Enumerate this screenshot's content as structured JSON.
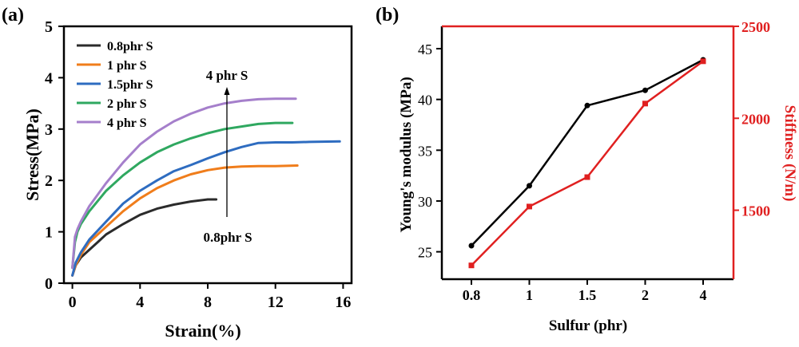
{
  "chart_data": [
    {
      "panel_label": "(a)",
      "type": "line",
      "xlabel": "Strain(%)",
      "ylabel": "Stress(MPa)",
      "xlim": [
        -0.5,
        16.5
      ],
      "ylim": [
        0,
        5
      ],
      "xticks": [
        0,
        4,
        8,
        12,
        16
      ],
      "yticks": [
        0,
        1,
        2,
        3,
        4,
        5
      ],
      "legend_position": "top-left",
      "annotation_top": "4 phr S",
      "annotation_bottom": "0.8phr S",
      "series": [
        {
          "name": "0.8phr S",
          "color": "#2b2b2b",
          "x": [
            0,
            0.2,
            0.5,
            1,
            1.5,
            2,
            3,
            4,
            5,
            6,
            7,
            8,
            8.5
          ],
          "y": [
            0.15,
            0.35,
            0.5,
            0.65,
            0.8,
            0.95,
            1.15,
            1.33,
            1.45,
            1.53,
            1.59,
            1.63,
            1.63
          ]
        },
        {
          "name": "1 phr S",
          "color": "#f07d1b",
          "x": [
            0,
            0.2,
            0.5,
            1,
            2,
            3,
            4,
            5,
            6,
            7,
            8,
            9,
            10,
            11,
            12,
            13.3
          ],
          "y": [
            0.15,
            0.35,
            0.55,
            0.8,
            1.1,
            1.4,
            1.65,
            1.85,
            2.0,
            2.12,
            2.2,
            2.25,
            2.27,
            2.28,
            2.28,
            2.29
          ]
        },
        {
          "name": "1.5phr S",
          "color": "#2e6cc0",
          "x": [
            0,
            0.2,
            0.5,
            1,
            2,
            3,
            4,
            5,
            6,
            7,
            8,
            9,
            10,
            11,
            12,
            13,
            14,
            15.8
          ],
          "y": [
            0.15,
            0.4,
            0.6,
            0.85,
            1.2,
            1.55,
            1.8,
            2.0,
            2.18,
            2.3,
            2.43,
            2.55,
            2.65,
            2.73,
            2.74,
            2.74,
            2.75,
            2.76
          ]
        },
        {
          "name": "2 phr S",
          "color": "#2fa860",
          "x": [
            0,
            0.15,
            0.3,
            0.5,
            1,
            2,
            3,
            4,
            5,
            6,
            7,
            8,
            9,
            10,
            11,
            12,
            13
          ],
          "y": [
            0.3,
            0.8,
            1.0,
            1.15,
            1.4,
            1.8,
            2.1,
            2.35,
            2.55,
            2.7,
            2.82,
            2.92,
            3.0,
            3.05,
            3.1,
            3.12,
            3.12
          ]
        },
        {
          "name": "4 phr S",
          "color": "#a57fcb",
          "x": [
            0,
            0.15,
            0.3,
            0.5,
            1,
            2,
            3,
            4,
            5,
            6,
            7,
            8,
            9,
            10,
            11,
            12,
            13.2
          ],
          "y": [
            0.3,
            0.9,
            1.05,
            1.2,
            1.5,
            1.95,
            2.35,
            2.7,
            2.95,
            3.15,
            3.3,
            3.42,
            3.5,
            3.55,
            3.58,
            3.59,
            3.59
          ]
        }
      ]
    },
    {
      "panel_label": "(b)",
      "type": "line",
      "xlabel": "Sulfur (phr)",
      "categories": [
        "0.8",
        "1",
        "1.5",
        "2",
        "4"
      ],
      "ylabel_left": "Young's modulus (MPa)",
      "ylabel_right": "Stiffness (N/m)",
      "ylim_left": [
        22.3,
        47.2
      ],
      "yticks_left": [
        25,
        30,
        35,
        40,
        45
      ],
      "ylim_right": [
        1125,
        2500
      ],
      "yticks_right": [
        1500,
        2000,
        2500
      ],
      "left_axis_color": "#000000",
      "right_axis_color": "#e02020",
      "series": [
        {
          "name": "Young's modulus",
          "axis": "left",
          "color": "#000000",
          "marker": "circle",
          "values": [
            25.6,
            31.5,
            39.4,
            40.9,
            43.9
          ]
        },
        {
          "name": "Stiffness",
          "axis": "right",
          "color": "#e02020",
          "marker": "square",
          "values": [
            1200,
            1520,
            1680,
            2080,
            2310
          ]
        }
      ]
    }
  ]
}
